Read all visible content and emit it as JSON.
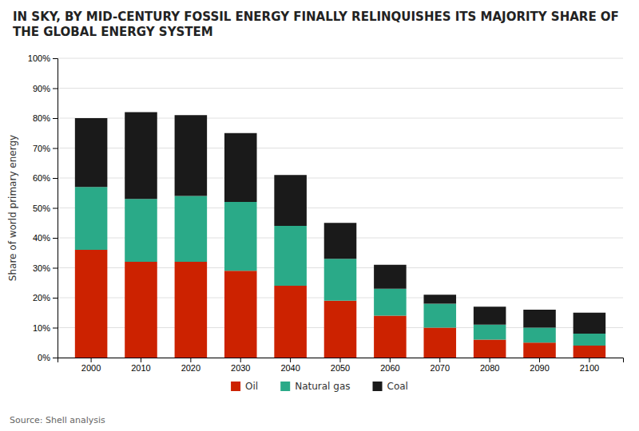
{
  "chart_data": {
    "type": "bar",
    "title": "IN SKY, BY MID-CENTURY FOSSIL ENERGY FINALLY RELINQUISHES ITS MAJORITY SHARE OF THE GLOBAL ENERGY SYSTEM",
    "ylabel": "Share of world primary energy",
    "annotations": [
      "Source: Shell analysis"
    ],
    "categories": [
      "2000",
      "2010",
      "2020",
      "2030",
      "2040",
      "2050",
      "2060",
      "2070",
      "2080",
      "2090",
      "2100"
    ],
    "series": [
      {
        "name": "Oil",
        "color": "#cc2200",
        "values": [
          36,
          32,
          32,
          29,
          24,
          19,
          14,
          10,
          6,
          5,
          4
        ]
      },
      {
        "name": "Natural gas",
        "color": "#2aaa88",
        "values": [
          21,
          21,
          22,
          23,
          20,
          14,
          9,
          8,
          5,
          5,
          4
        ]
      },
      {
        "name": "Coal",
        "color": "#1a1a1a",
        "values": [
          23,
          29,
          27,
          23,
          17,
          12,
          8,
          3,
          6,
          6,
          7
        ]
      }
    ],
    "stacked": true,
    "ylim": [
      0,
      100
    ],
    "yticks": [
      {
        "value": 0,
        "label": "0%"
      },
      {
        "value": 10,
        "label": "10%"
      },
      {
        "value": 20,
        "label": "20%"
      },
      {
        "value": 30,
        "label": "30%"
      },
      {
        "value": 40,
        "label": "40%"
      },
      {
        "value": 50,
        "label": "50%"
      },
      {
        "value": 60,
        "label": "60%"
      },
      {
        "value": 70,
        "label": "70%"
      },
      {
        "value": 80,
        "label": "80%"
      },
      {
        "value": 90,
        "label": "90%"
      },
      {
        "value": 100,
        "label": "100%"
      }
    ],
    "grid": true,
    "legend": "bottom"
  }
}
